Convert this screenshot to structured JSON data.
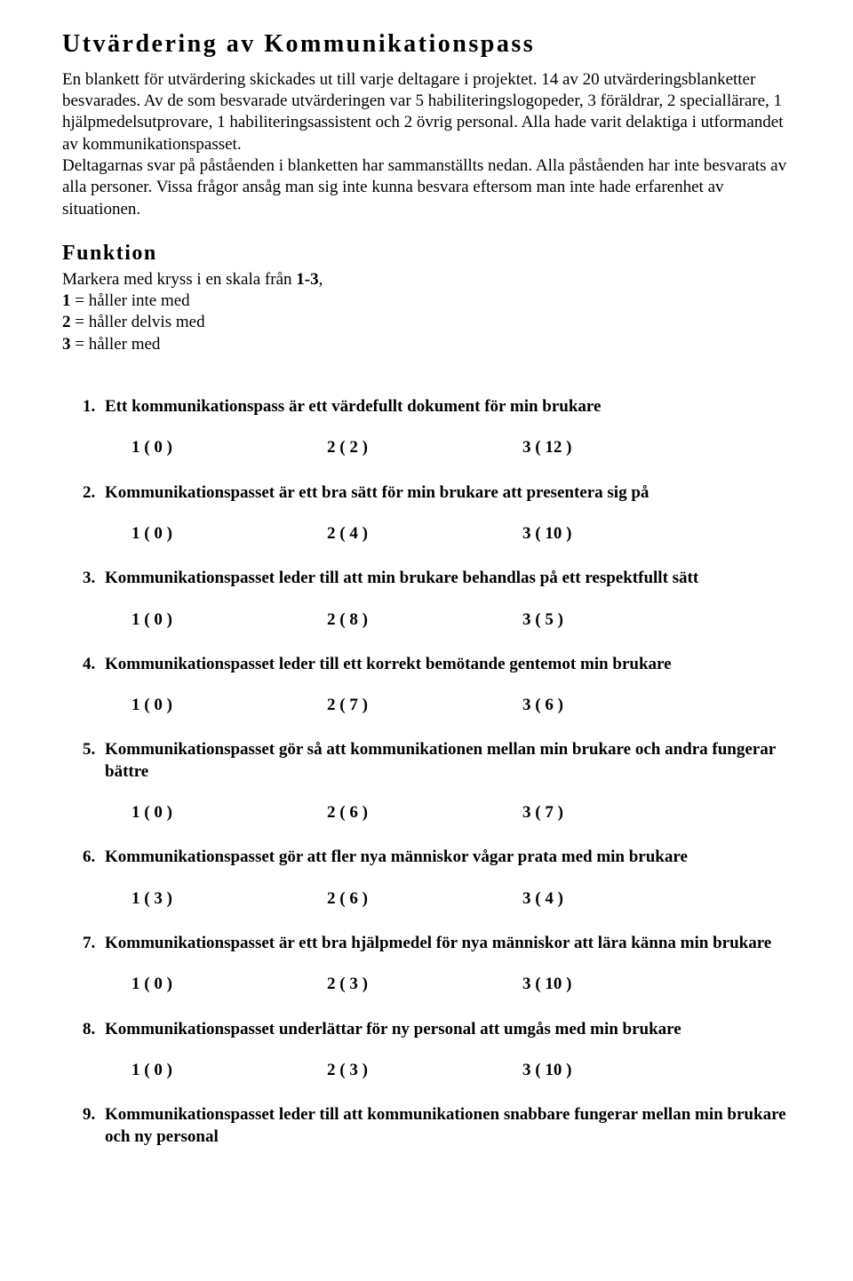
{
  "title": "Utvärdering av Kommunikationspass",
  "intro": "En blankett för utvärdering skickades ut till varje deltagare i projektet. 14 av 20 utvärderingsblanketter besvarades. Av de som besvarade utvärderingen var 5 habiliteringslogopeder, 3 föräldrar, 2 speciallärare, 1 hjälpmedelsutprovare, 1 habiliteringsassistent och 2 övrig personal. Alla hade varit delaktiga i utformandet av kommunikationspasset.\nDeltagarnas svar på påståenden i blanketten har sammanställts nedan. Alla påståenden har inte besvarats av alla personer. Vissa frågor ansåg man sig inte kunna besvara eftersom man inte hade erfarenhet av situationen.",
  "section_heading": "Funktion",
  "scale": {
    "intro_prefix": "Markera med kryss i en skala från ",
    "intro_bold": "1-3",
    "intro_suffix": ",",
    "lines": [
      {
        "bold": "1",
        "rest": " = håller inte med"
      },
      {
        "bold": "2",
        "rest": " = håller delvis med"
      },
      {
        "bold": "3",
        "rest": " = håller med"
      }
    ]
  },
  "questions": [
    {
      "text": "Ett kommunikationspass är ett värdefullt dokument för min brukare",
      "answers": [
        "1 ( 0 )",
        "2 ( 2 )",
        "3 ( 12 )"
      ]
    },
    {
      "text": "Kommunikationspasset är ett bra sätt för min brukare att presentera sig på",
      "answers": [
        "1 ( 0 )",
        "2 ( 4 )",
        "3 ( 10 )"
      ]
    },
    {
      "text": "Kommunikationspasset leder  till att min brukare behandlas på ett respektfullt sätt",
      "answers": [
        "1 ( 0 )",
        "2 ( 8 )",
        "3 ( 5 )"
      ]
    },
    {
      "text": "Kommunikationspasset leder till ett korrekt bemötande gentemot min brukare",
      "answers": [
        "1 ( 0 )",
        "2 ( 7 )",
        "3 ( 6 )"
      ]
    },
    {
      "text": "Kommunikationspasset gör så att kommunikationen mellan min brukare och andra fungerar bättre",
      "answers": [
        "1 ( 0 )",
        "2 ( 6 )",
        "3 ( 7 )"
      ]
    },
    {
      "text": "Kommunikationspasset gör att fler nya människor vågar prata med min brukare",
      "answers": [
        "1 ( 3 )",
        "2 ( 6 )",
        "3 ( 4 )"
      ]
    },
    {
      "text": "Kommunikationspasset är ett bra hjälpmedel för nya människor att lära känna min brukare",
      "answers": [
        "1 ( 0 )",
        "2 ( 3 )",
        "3 ( 10 )"
      ]
    },
    {
      "text": "Kommunikationspasset underlättar för ny personal att umgås med min brukare",
      "answers": [
        "1 ( 0 )",
        "2 ( 3 )",
        "3 ( 10 )"
      ]
    },
    {
      "text": "Kommunikationspasset leder till att kommunikationen snabbare fungerar mellan min brukare och ny personal",
      "answers": null
    }
  ]
}
